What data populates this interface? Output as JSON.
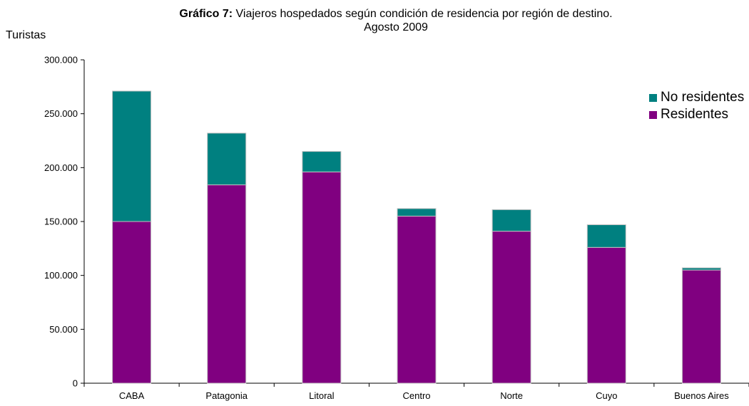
{
  "chart_data": {
    "type": "bar",
    "stacked": true,
    "title_bold": "Gráfico 7:",
    "title_rest": " Viajeros hospedados según condición de residencia por región de destino.",
    "subtitle": "Agosto 2009",
    "ylabel": "Turistas",
    "xlabel": "",
    "ylim": [
      0,
      300000
    ],
    "yticks": [
      "0",
      "50.000",
      "100.000",
      "150.000",
      "200.000",
      "250.000",
      "300.000"
    ],
    "categories": [
      "CABA",
      "Patagonia",
      "Litoral",
      "Centro",
      "Norte",
      "Cuyo",
      "Buenos Aires"
    ],
    "series": [
      {
        "name": "Residentes",
        "color": "#800080",
        "values": [
          150000,
          184000,
          196000,
          155000,
          141000,
          126000,
          105000
        ]
      },
      {
        "name": "No residentes",
        "color": "#008080",
        "values": [
          121000,
          48000,
          19000,
          7000,
          20000,
          21000,
          2000
        ]
      }
    ],
    "legend": {
      "position": "top-right",
      "entries": [
        "No residentes",
        "Residentes"
      ]
    },
    "grid": false
  }
}
